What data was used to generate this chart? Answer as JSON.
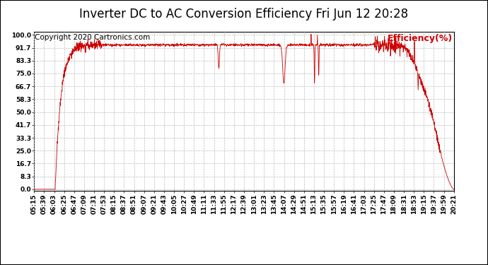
{
  "title": "Inverter DC to AC Conversion Efficiency Fri Jun 12 20:28",
  "copyright": "Copyright 2020 Cartronics.com",
  "ylabel": "Efficiency(%)",
  "ylabel_color": "#cc0000",
  "line_color": "#cc0000",
  "background_color": "#ffffff",
  "grid_color": "#bbbbbb",
  "yticks": [
    0.0,
    8.3,
    16.7,
    25.0,
    33.3,
    41.7,
    50.0,
    58.3,
    66.7,
    75.0,
    83.3,
    91.7,
    100.0
  ],
  "ylim": [
    -1,
    102
  ],
  "xtick_labels": [
    "05:15",
    "05:39",
    "06:03",
    "06:25",
    "06:47",
    "07:09",
    "07:31",
    "07:53",
    "08:15",
    "08:37",
    "08:51",
    "09:07",
    "09:21",
    "09:43",
    "10:05",
    "10:27",
    "10:49",
    "11:11",
    "11:33",
    "11:55",
    "12:17",
    "12:39",
    "13:01",
    "13:23",
    "13:45",
    "14:07",
    "14:29",
    "14:51",
    "15:13",
    "15:35",
    "15:57",
    "16:19",
    "16:41",
    "17:03",
    "17:25",
    "17:47",
    "18:09",
    "18:31",
    "18:53",
    "19:15",
    "19:37",
    "19:59",
    "20:21"
  ],
  "title_fontsize": 12,
  "copyright_fontsize": 7.5,
  "ylabel_fontsize": 9,
  "tick_fontsize": 6.5,
  "figsize": [
    6.9,
    3.75
  ],
  "dpi": 100
}
